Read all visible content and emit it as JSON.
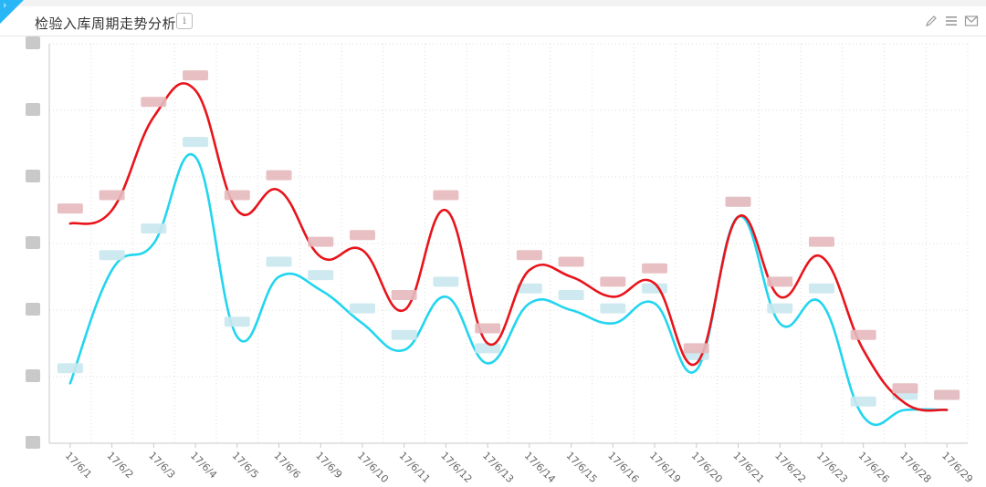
{
  "panel": {
    "title": "检验入库周期走势分析",
    "info_glyph": "i",
    "expand_glyph": "›",
    "tools": [
      "edit-icon",
      "menu-icon",
      "mail-icon"
    ]
  },
  "chart_data": {
    "type": "line",
    "title": "",
    "xlabel": "",
    "ylabel": "",
    "categories": [
      "17/6/1",
      "17/6/2",
      "17/6/3",
      "17/6/4",
      "17/6/5",
      "17/6/6",
      "17/6/9",
      "17/6/10",
      "17/6/11",
      "17/6/12",
      "17/6/13",
      "17/6/14",
      "17/6/15",
      "17/6/16",
      "17/6/19",
      "17/6/20",
      "17/6/21",
      "17/6/22",
      "17/6/23",
      "17/6/26",
      "17/6/28",
      "17/6/29"
    ],
    "ylim": [
      0,
      6
    ],
    "grid": true,
    "legend": "none",
    "series": [
      {
        "color": "#e8141b",
        "values": [
          3.3,
          3.5,
          4.9,
          5.3,
          3.5,
          3.8,
          2.8,
          2.9,
          2.0,
          3.5,
          1.5,
          2.6,
          2.5,
          2.2,
          2.4,
          1.2,
          3.4,
          2.2,
          2.8,
          1.4,
          0.6,
          0.5
        ]
      },
      {
        "color": "#22d5ef",
        "values": [
          0.9,
          2.6,
          3.0,
          4.3,
          1.6,
          2.5,
          2.3,
          1.8,
          1.4,
          2.2,
          1.2,
          2.1,
          2.0,
          1.8,
          2.1,
          1.1,
          3.4,
          1.8,
          2.1,
          0.4,
          0.5,
          0.5
        ]
      }
    ]
  }
}
